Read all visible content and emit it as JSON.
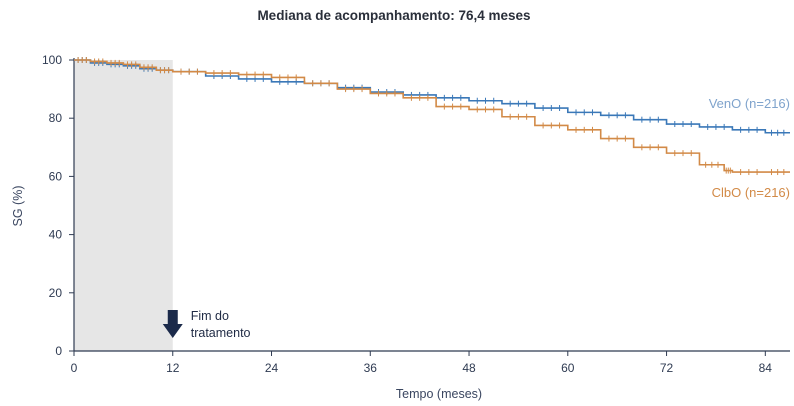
{
  "chart_data": {
    "type": "line",
    "title": "Mediana de acompanhamento: 76,4 meses",
    "xlabel": "Tempo (meses)",
    "ylabel": "SG (%)",
    "xlim": [
      0,
      87
    ],
    "ylim": [
      0,
      100
    ],
    "xticks": [
      0,
      12,
      24,
      36,
      48,
      60,
      72,
      84
    ],
    "yticks": [
      0,
      20,
      40,
      60,
      80,
      100
    ],
    "grid": false,
    "shaded_region": {
      "x_start": 0,
      "x_end": 12,
      "color": "#e6e6e6"
    },
    "annotation": {
      "x": 12,
      "line1": "Fim do",
      "line2": "tratamento",
      "arrow_color": "#1b2a4a"
    },
    "series": [
      {
        "name": "VenO (n=216)",
        "color": "#3a78b8",
        "label_color": "#7fa3cc",
        "x": [
          0,
          2,
          4,
          6,
          8,
          10,
          12,
          16,
          20,
          24,
          28,
          32,
          36,
          40,
          44,
          48,
          52,
          56,
          60,
          64,
          68,
          72,
          76,
          80,
          84,
          87
        ],
        "y": [
          100,
          99,
          98.5,
          98,
          97,
          96.5,
          96,
          94.5,
          93.5,
          92.5,
          92,
          90.5,
          89,
          88,
          87,
          86,
          85,
          83.5,
          82,
          81,
          79.5,
          78,
          77,
          76,
          75,
          75
        ]
      },
      {
        "name": "ClbO (n=216)",
        "color": "#d28a47",
        "label_color": "#d28a47",
        "x": [
          0,
          2,
          4,
          6,
          8,
          10,
          12,
          16,
          20,
          24,
          28,
          32,
          36,
          40,
          44,
          48,
          52,
          56,
          60,
          64,
          68,
          72,
          76,
          79,
          80,
          84,
          87
        ],
        "y": [
          100,
          99.5,
          99,
          98.5,
          97.5,
          96.5,
          96,
          95.5,
          95,
          94,
          92,
          90,
          88.5,
          87,
          84,
          83,
          80.5,
          77.5,
          76,
          73,
          70,
          68,
          64,
          62,
          61.5,
          61.5,
          61.5
        ]
      }
    ]
  }
}
